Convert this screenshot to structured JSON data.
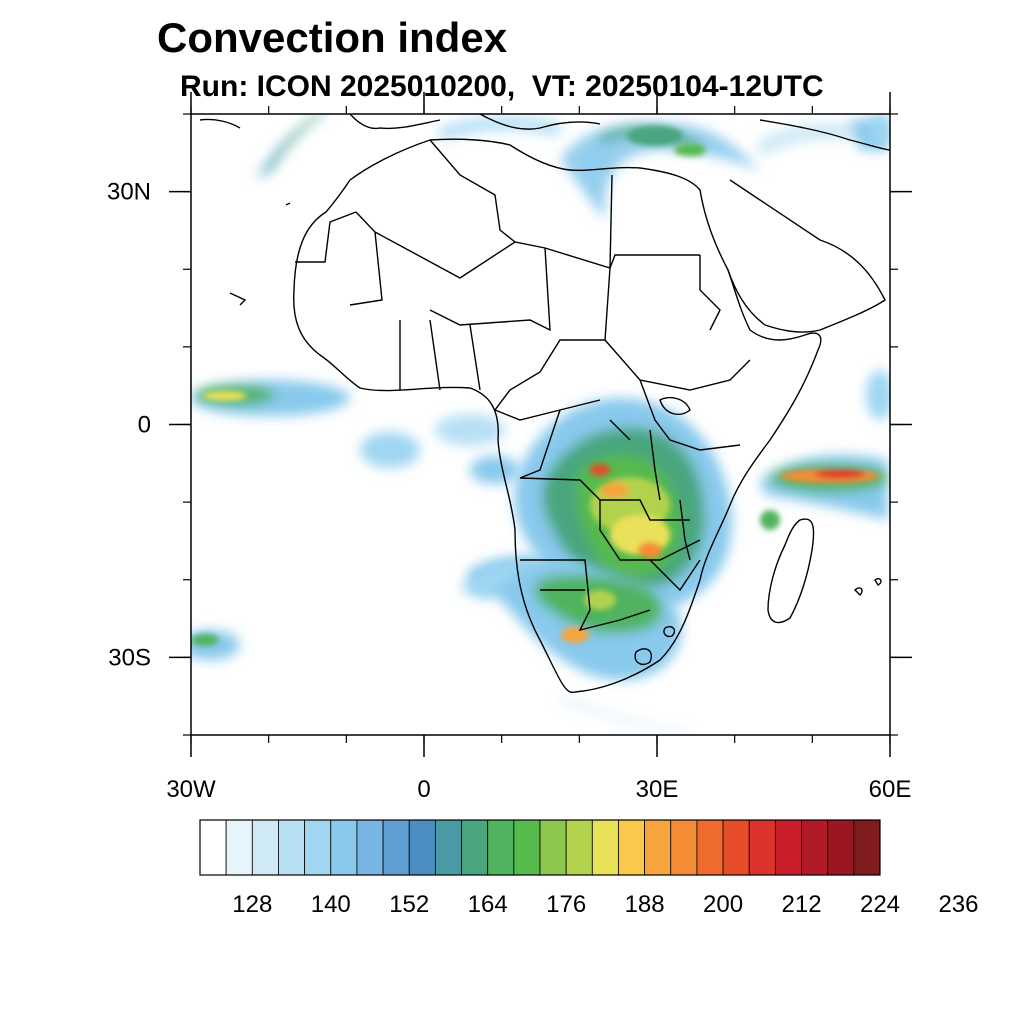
{
  "title": "Convection index",
  "subtitle": "Run: ICON 2025010200,  VT: 20250104-12UTC",
  "map": {
    "lon_range": [
      -30,
      60
    ],
    "lat_range": [
      -40,
      40
    ],
    "x_ticks": [
      {
        "lon": -30,
        "label": "30W"
      },
      {
        "lon": 0,
        "label": "0"
      },
      {
        "lon": 30,
        "label": "30E"
      },
      {
        "lon": 60,
        "label": "60E"
      }
    ],
    "y_ticks": [
      {
        "lat": 30,
        "label": "30N"
      },
      {
        "lat": 0,
        "label": "0"
      },
      {
        "lat": -30,
        "label": "30S"
      }
    ],
    "minor_tick_step_deg": 10
  },
  "colorbar": {
    "colors": [
      "#ffffff",
      "#e8f4fb",
      "#cfe9f7",
      "#b8e0f5",
      "#9fd6f2",
      "#88c9ec",
      "#77b6e3",
      "#5f9fd4",
      "#4b8ec4",
      "#4a9aa6",
      "#4aa67e",
      "#4fb35f",
      "#56ba4c",
      "#8cc64d",
      "#b2d24e",
      "#eae15a",
      "#f8c94a",
      "#f7a43c",
      "#f58c35",
      "#ef6a2d",
      "#e64c2a",
      "#dd322b",
      "#c81e2a",
      "#b01a27",
      "#991622",
      "#801b1f"
    ],
    "labels": [
      "128",
      "140",
      "152",
      "164",
      "176",
      "188",
      "200",
      "212",
      "224",
      "236"
    ]
  },
  "regions": [
    {
      "name": "west-africa-coast",
      "lon": -26,
      "lat": 7,
      "level": 8
    },
    {
      "name": "mediterranean-band",
      "lon": 28,
      "lat": 36,
      "level": 9
    },
    {
      "name": "atlantic-north-streak",
      "lon": -20,
      "lat": 36,
      "level": 6
    },
    {
      "name": "congo-basin",
      "lon": 24,
      "lat": -2,
      "level": 12
    },
    {
      "name": "zambia-malawi",
      "lon": 27,
      "lat": -13,
      "level": 16
    },
    {
      "name": "indian-ocean-band",
      "lon": 52,
      "lat": -6,
      "level": 20
    },
    {
      "name": "namibia-botswana",
      "lon": 20,
      "lat": -22,
      "level": 13
    },
    {
      "name": "south-atlantic-arc",
      "lon": -27,
      "lat": -28,
      "level": 10
    }
  ]
}
